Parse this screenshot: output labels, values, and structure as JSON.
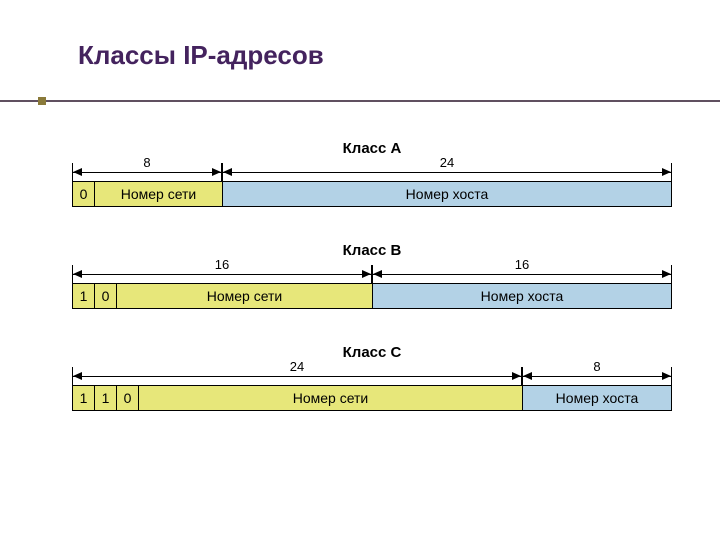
{
  "title": "Классы IP-адресов",
  "totalBits": 32,
  "barWidthPx": 600,
  "bitCellPx": 22,
  "labels": {
    "network": "Номер сети",
    "host": "Номер хоста"
  },
  "classes": [
    {
      "name": "Класс A",
      "topPx": 140,
      "prefixBits": [
        "0"
      ],
      "networkBits": 8,
      "hostBits": 24
    },
    {
      "name": "Класс B",
      "topPx": 242,
      "prefixBits": [
        "1",
        "0"
      ],
      "networkBits": 16,
      "hostBits": 16
    },
    {
      "name": "Класс C",
      "topPx": 344,
      "prefixBits": [
        "1",
        "1",
        "0"
      ],
      "networkBits": 24,
      "hostBits": 8
    }
  ],
  "colors": {
    "titleColor": "#44235e",
    "ruleColor": "#605060",
    "bulletColor": "#8a7a3a",
    "networkFill": "#e7e77a",
    "hostFill": "#b3d2e6",
    "border": "#000000",
    "background": "#ffffff"
  },
  "fonts": {
    "titleSize": 26,
    "classLabelSize": 15,
    "cellTextSize": 14,
    "dimNumSize": 13
  }
}
